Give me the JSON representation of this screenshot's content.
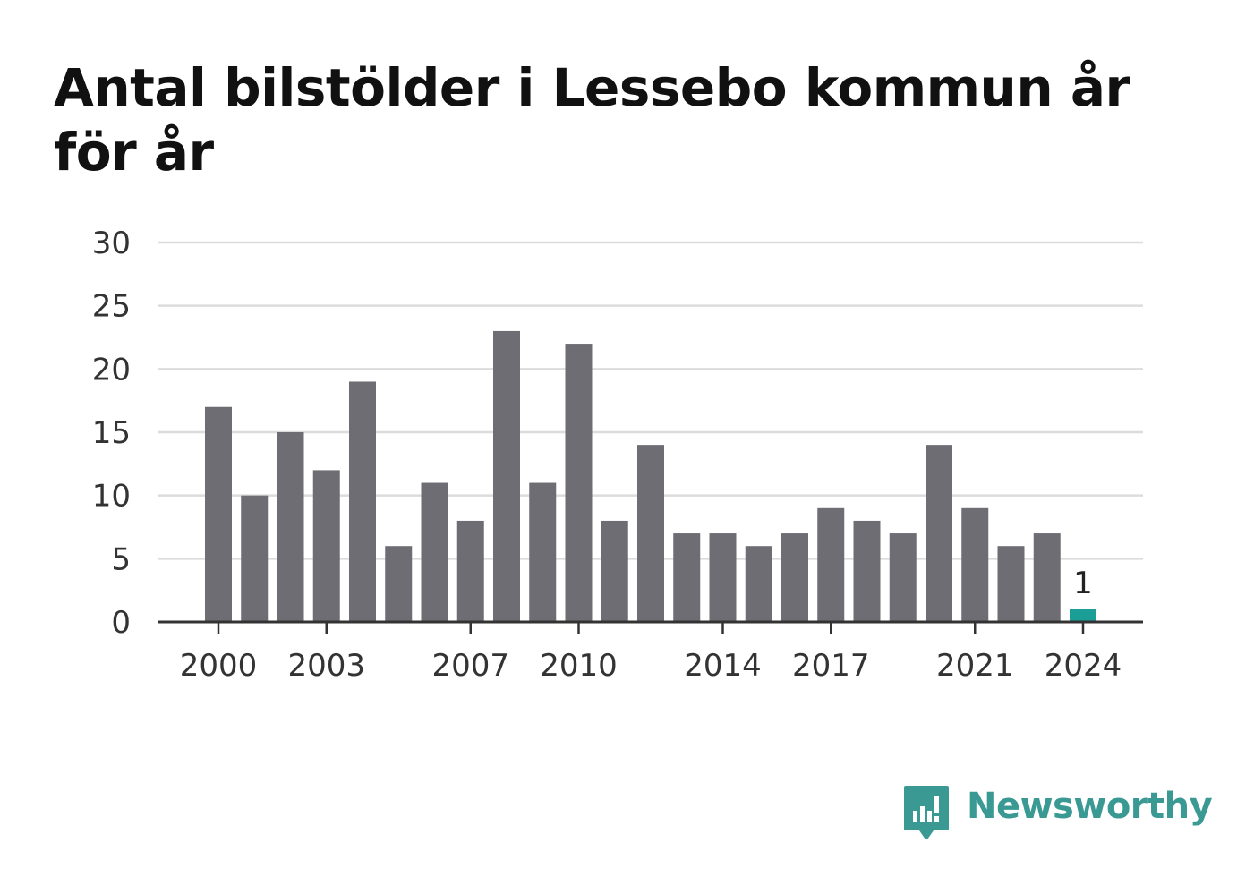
{
  "chart_data": {
    "type": "bar",
    "title": "Antal bilstölder i Lessebo kommun år för år",
    "categories": [
      "2000",
      "2001",
      "2002",
      "2003",
      "2004",
      "2005",
      "2006",
      "2007",
      "2008",
      "2009",
      "2010",
      "2011",
      "2012",
      "2013",
      "2014",
      "2015",
      "2016",
      "2017",
      "2018",
      "2019",
      "2020",
      "2021",
      "2022",
      "2023",
      "2024"
    ],
    "values": [
      17,
      10,
      15,
      12,
      19,
      6,
      11,
      8,
      23,
      11,
      22,
      8,
      14,
      7,
      7,
      6,
      7,
      9,
      8,
      7,
      14,
      9,
      6,
      7,
      1
    ],
    "x_tick_labels": [
      "2000",
      "2003",
      "2007",
      "2010",
      "2014",
      "2017",
      "2021",
      "2024"
    ],
    "y_ticks": [
      "0",
      "5",
      "10",
      "15",
      "20",
      "25",
      "30"
    ],
    "ylim": [
      0,
      30
    ],
    "grid": true,
    "highlight": {
      "category": "2024",
      "label": "1"
    },
    "colors": {
      "bar": "#6e6d73",
      "highlight": "#1a9e96",
      "grid": "#dcdcdc",
      "axis": "#333333"
    }
  },
  "brand": {
    "name": "Newsworthy",
    "color": "#3a9a93"
  }
}
